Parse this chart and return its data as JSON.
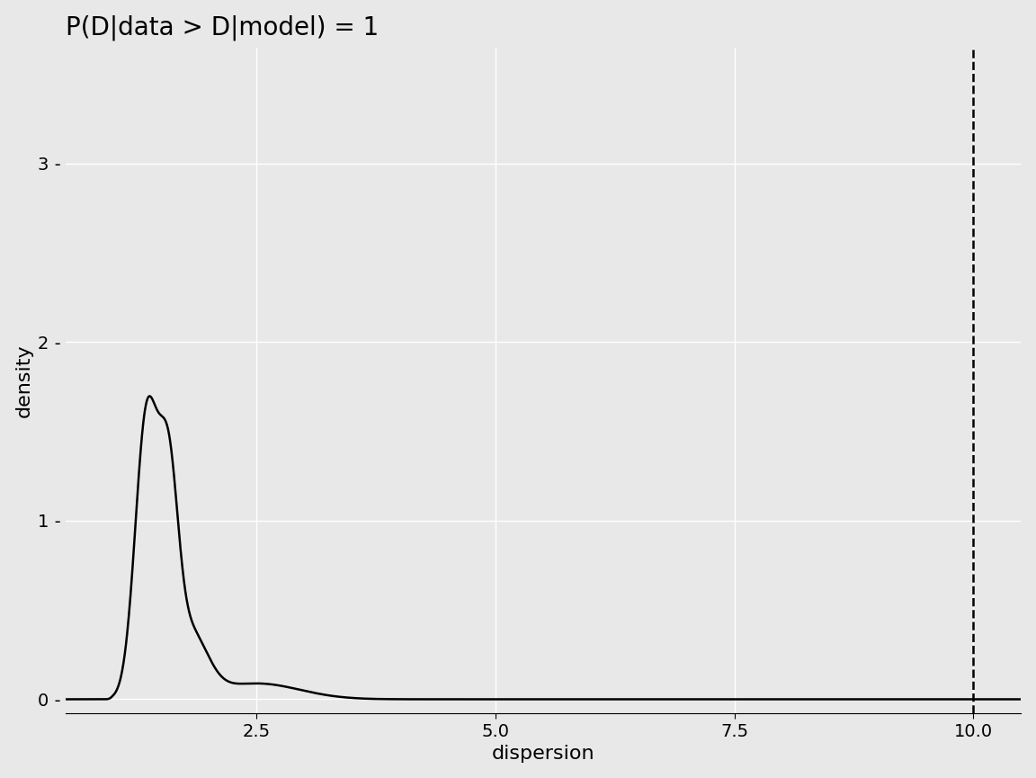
{
  "title": "P(D|data > D|model) = 1",
  "xlabel": "dispersion",
  "ylabel": "density",
  "xlim": [
    0.5,
    10.5
  ],
  "ylim": [
    -0.08,
    3.65
  ],
  "vline_x": 10.0,
  "vline_color": "#000000",
  "vline_style": "--",
  "vline_lw": 1.8,
  "curve_color": "#000000",
  "curve_lw": 1.8,
  "background_color": "#e8e8e8",
  "grid_color": "#ffffff",
  "title_fontsize": 20,
  "axis_label_fontsize": 16,
  "tick_label_fontsize": 14,
  "xticks": [
    2.5,
    5.0,
    7.5,
    10.0
  ],
  "yticks": [
    0,
    1,
    2,
    3
  ],
  "ytick_labels": [
    "0",
    "1",
    "2",
    "3"
  ]
}
